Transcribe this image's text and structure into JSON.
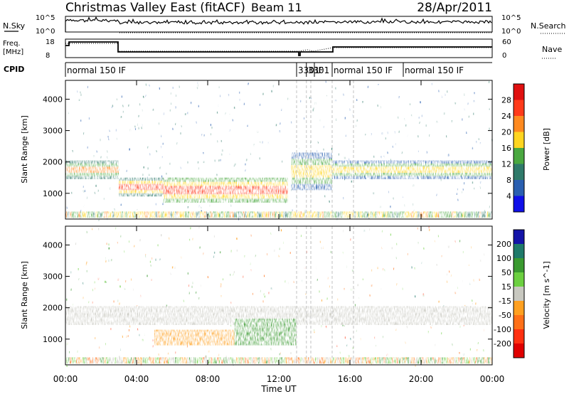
{
  "header": {
    "title": "Christmas Valley East (fitACF)",
    "beam": "Beam 11",
    "date": "28/Apr/2011"
  },
  "top_panels": {
    "nsky": {
      "label": "N.Sky",
      "tick_top": "10^5",
      "tick_bottom": "10^0",
      "right_label": "N.Search",
      "right_tick_top": "10^5",
      "right_tick_bottom": "10^0"
    },
    "freq": {
      "label_line1": "Freq.",
      "label_line2": "[MHz]",
      "tick_top": "18",
      "tick_bottom": "8",
      "right_label": "Nave",
      "right_tick_top": "60",
      "right_tick_bottom": "0"
    },
    "cpid": {
      "label": "CPID",
      "segments": [
        {
          "label": "normal 150 IF",
          "start_h": 0.0,
          "end_h": 13.0
        },
        {
          "label": "3301",
          "start_h": 13.0,
          "end_h": 13.55
        },
        {
          "label": "3301",
          "start_h": 13.55,
          "end_h": 14.0
        },
        {
          "label": "IF",
          "start_h": 14.0,
          "end_h": 15.0
        },
        {
          "label": "normal 150 IF",
          "start_h": 15.0,
          "end_h": 19.0
        },
        {
          "label": "normal 150 IF",
          "start_h": 19.0,
          "end_h": 24.0
        }
      ]
    }
  },
  "chart_data": [
    {
      "type": "heatmap",
      "name": "power",
      "ylabel": "Slant Range [km]",
      "yticks": [
        1000,
        2000,
        3000,
        4000
      ],
      "xticks": [
        "00:00",
        "04:00",
        "08:00",
        "12:00",
        "16:00",
        "20:00",
        "00:00"
      ],
      "xlim_hours": [
        0,
        24
      ],
      "ylim_km": [
        180,
        4600
      ],
      "colorbar": {
        "label": "Power [dB]",
        "ticks": [
          "28",
          "24",
          "20",
          "16",
          "12",
          "8",
          "4"
        ],
        "colors": [
          "#e01010",
          "#ff3a1a",
          "#ff8a20",
          "#ffd520",
          "#4aa840",
          "#2f7a6a",
          "#2a5fb0",
          "#1010e8"
        ]
      },
      "echo_bands": [
        {
          "start_h": 0.0,
          "end_h": 3.0,
          "range_km": [
            1450,
            2050
          ],
          "level": 0.8
        },
        {
          "start_h": 3.0,
          "end_h": 6.5,
          "range_km": [
            900,
            1500
          ],
          "level": 0.9
        },
        {
          "start_h": 5.5,
          "end_h": 12.5,
          "range_km": [
            700,
            1500
          ],
          "level": 0.95
        },
        {
          "start_h": 12.7,
          "end_h": 15.0,
          "range_km": [
            1100,
            2300
          ],
          "level": 0.75
        },
        {
          "start_h": 15.0,
          "end_h": 24.0,
          "range_km": [
            1450,
            2050
          ],
          "level": 0.7
        }
      ]
    },
    {
      "type": "heatmap",
      "name": "velocity",
      "ylabel": "Slant Range [km]",
      "yticks": [
        1000,
        2000,
        3000,
        4000
      ],
      "xticks": [
        "00:00",
        "04:00",
        "08:00",
        "12:00",
        "16:00",
        "20:00",
        "00:00"
      ],
      "xlabel": "Time UT",
      "xlim_hours": [
        0,
        24
      ],
      "ylim_km": [
        180,
        4600
      ],
      "colorbar": {
        "label": "Velocity [m s^-1]",
        "ticks": [
          "200",
          "100",
          "50",
          "15",
          "-15",
          "-50",
          "-100",
          "-200"
        ],
        "colors": [
          "#1414a8",
          "#1f7a6a",
          "#3a9a30",
          "#6cd040",
          "#c8c8c0",
          "#ffa020",
          "#ff7018",
          "#ff3010",
          "#e00000"
        ]
      },
      "echo_bands": [
        {
          "start_h": 0.0,
          "end_h": 15.0,
          "range_km": [
            1450,
            2050
          ],
          "level": -0.05
        },
        {
          "start_h": 5.0,
          "end_h": 9.5,
          "range_km": [
            800,
            1300
          ],
          "level": -0.3
        },
        {
          "start_h": 9.5,
          "end_h": 13.0,
          "range_km": [
            800,
            1650
          ],
          "level": 0.45
        },
        {
          "start_h": 15.0,
          "end_h": 24.0,
          "range_km": [
            1450,
            2050
          ],
          "level": -0.02
        }
      ]
    }
  ]
}
